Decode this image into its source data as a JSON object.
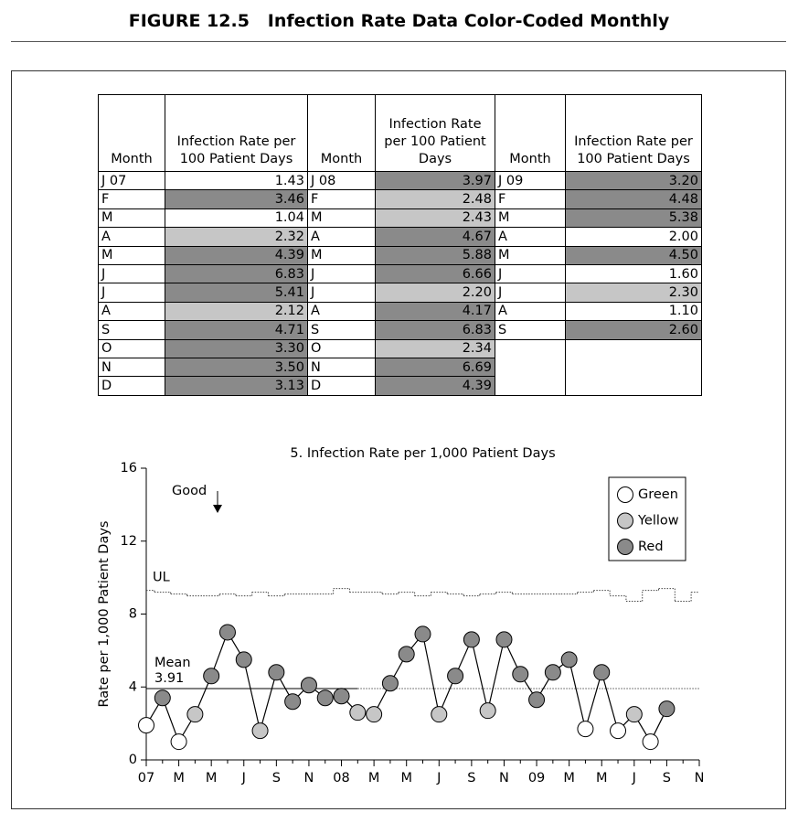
{
  "title": "FIGURE 12.5   Infection Rate Data Color-Coded Monthly",
  "table": {
    "groups": [
      {
        "header": [
          "Month",
          "Infection Rate per 100 Patient Days"
        ],
        "rows": [
          {
            "month": "J 07",
            "rate": "1.43",
            "color": "#ffffff"
          },
          {
            "month": "F",
            "rate": "3.46",
            "color": "#8a8a8a"
          },
          {
            "month": "M",
            "rate": "1.04",
            "color": "#ffffff"
          },
          {
            "month": "A",
            "rate": "2.32",
            "color": "#c6c6c6"
          },
          {
            "month": "M",
            "rate": "4.39",
            "color": "#8a8a8a"
          },
          {
            "month": "J",
            "rate": "6.83",
            "color": "#8a8a8a"
          },
          {
            "month": "J",
            "rate": "5.41",
            "color": "#8a8a8a"
          },
          {
            "month": "A",
            "rate": "2.12",
            "color": "#c6c6c6"
          },
          {
            "month": "S",
            "rate": "4.71",
            "color": "#8a8a8a"
          },
          {
            "month": "O",
            "rate": "3.30",
            "color": "#8a8a8a"
          },
          {
            "month": "N",
            "rate": "3.50",
            "color": "#8a8a8a"
          },
          {
            "month": "D",
            "rate": "3.13",
            "color": "#8a8a8a"
          }
        ]
      },
      {
        "header": [
          "Month",
          "Infection Rate per 100 Patient Days"
        ],
        "rows": [
          {
            "month": "J 08",
            "rate": "3.97",
            "color": "#8a8a8a"
          },
          {
            "month": "F",
            "rate": "2.48",
            "color": "#c6c6c6"
          },
          {
            "month": "M",
            "rate": "2.43",
            "color": "#c6c6c6"
          },
          {
            "month": "A",
            "rate": "4.67",
            "color": "#8a8a8a"
          },
          {
            "month": "M",
            "rate": "5.88",
            "color": "#8a8a8a"
          },
          {
            "month": "J",
            "rate": "6.66",
            "color": "#8a8a8a"
          },
          {
            "month": "J",
            "rate": "2.20",
            "color": "#c6c6c6"
          },
          {
            "month": "A",
            "rate": "4.17",
            "color": "#8a8a8a"
          },
          {
            "month": "S",
            "rate": "6.83",
            "color": "#8a8a8a"
          },
          {
            "month": "O",
            "rate": "2.34",
            "color": "#c6c6c6"
          },
          {
            "month": "N",
            "rate": "6.69",
            "color": "#8a8a8a"
          },
          {
            "month": "D",
            "rate": "4.39",
            "color": "#8a8a8a"
          }
        ]
      },
      {
        "header": [
          "Month",
          "Infection Rate per 100 Patient Days"
        ],
        "rows": [
          {
            "month": "J 09",
            "rate": "3.20",
            "color": "#8a8a8a"
          },
          {
            "month": "F",
            "rate": "4.48",
            "color": "#8a8a8a"
          },
          {
            "month": "M",
            "rate": "5.38",
            "color": "#8a8a8a"
          },
          {
            "month": "A",
            "rate": "2.00",
            "color": "#ffffff"
          },
          {
            "month": "M",
            "rate": "4.50",
            "color": "#8a8a8a"
          },
          {
            "month": "J",
            "rate": "1.60",
            "color": "#ffffff"
          },
          {
            "month": "J",
            "rate": "2.30",
            "color": "#c6c6c6"
          },
          {
            "month": "A",
            "rate": "1.10",
            "color": "#ffffff"
          },
          {
            "month": "S",
            "rate": "2.60",
            "color": "#8a8a8a"
          }
        ]
      }
    ]
  },
  "chart_data": {
    "type": "line",
    "title": "5. Infection Rate per 1,000 Patient Days",
    "y_label": "Rate per 1,000 Patient Days",
    "categories": [
      "07",
      null,
      "M",
      null,
      "M",
      null,
      "J",
      null,
      "S",
      null,
      "N",
      null,
      "08",
      null,
      "M",
      null,
      "M",
      null,
      "J",
      null,
      "S",
      null,
      "N",
      null,
      "09",
      null,
      "M",
      null,
      "M",
      null,
      "J",
      null,
      "S",
      null,
      "N"
    ],
    "values": [
      1.9,
      3.4,
      1.0,
      2.5,
      4.6,
      7.0,
      5.5,
      1.6,
      4.8,
      3.2,
      4.1,
      3.4,
      3.5,
      2.6,
      2.5,
      4.2,
      5.8,
      6.9,
      2.5,
      4.6,
      6.6,
      2.7,
      6.6,
      4.7,
      3.3,
      4.8,
      5.5,
      1.7,
      4.8,
      1.6,
      2.5,
      1.0,
      2.8,
      null,
      null
    ],
    "point_colors": [
      "#ffffff",
      "#8a8a8a",
      "#ffffff",
      "#c6c6c6",
      "#8a8a8a",
      "#8a8a8a",
      "#8a8a8a",
      "#c6c6c6",
      "#8a8a8a",
      "#8a8a8a",
      "#8a8a8a",
      "#8a8a8a",
      "#8a8a8a",
      "#c6c6c6",
      "#c6c6c6",
      "#8a8a8a",
      "#8a8a8a",
      "#8a8a8a",
      "#c6c6c6",
      "#8a8a8a",
      "#8a8a8a",
      "#c6c6c6",
      "#8a8a8a",
      "#8a8a8a",
      "#8a8a8a",
      "#8a8a8a",
      "#8a8a8a",
      "#ffffff",
      "#8a8a8a",
      "#ffffff",
      "#c6c6c6",
      "#ffffff",
      "#8a8a8a",
      null,
      null
    ],
    "legend": [
      {
        "name": "Green",
        "color": "#ffffff"
      },
      {
        "name": "Yellow",
        "color": "#c6c6c6"
      },
      {
        "name": "Red",
        "color": "#8a8a8a"
      }
    ],
    "ul": {
      "name": "UL",
      "values": [
        9.3,
        9.2,
        9.1,
        9.0,
        9.0,
        9.1,
        9.0,
        9.2,
        9.0,
        9.1,
        9.1,
        9.1,
        9.4,
        9.2,
        9.2,
        9.1,
        9.2,
        9.0,
        9.2,
        9.1,
        9.0,
        9.1,
        9.2,
        9.1,
        9.1,
        9.1,
        9.1,
        9.2,
        9.3,
        9.0,
        8.7,
        9.3,
        9.4,
        8.7,
        9.2
      ]
    },
    "mean": {
      "name": "Mean",
      "value": 3.91
    },
    "annotation": "Good",
    "ylim": [
      0,
      16
    ],
    "yticks": [
      0,
      4,
      8,
      12,
      16
    ]
  }
}
